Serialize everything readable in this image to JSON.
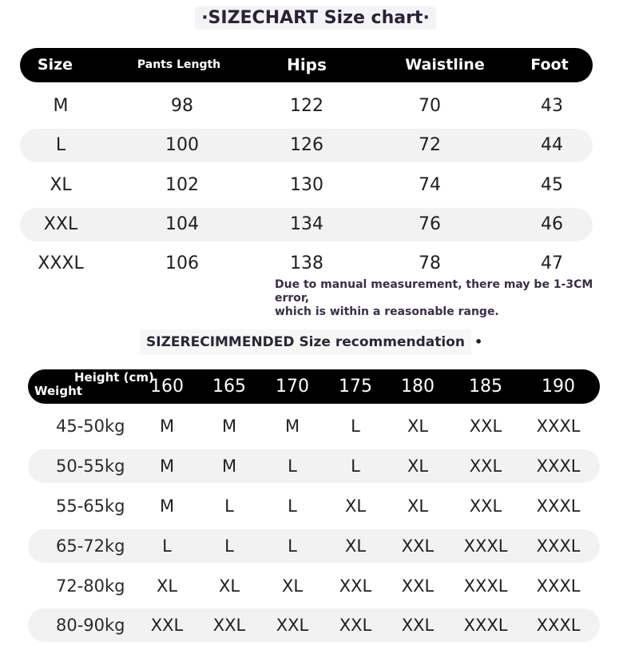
{
  "size_chart": {
    "title": "·SIZECHART Size chart·",
    "headers": [
      "Size",
      "Pants Length",
      "Hips",
      "Waistline",
      "Foot"
    ],
    "rows": [
      [
        "M",
        "98",
        "122",
        "70",
        "43"
      ],
      [
        "L",
        "100",
        "126",
        "72",
        "44"
      ],
      [
        "XL",
        "102",
        "130",
        "74",
        "45"
      ],
      [
        "XXL",
        "104",
        "134",
        "76",
        "46"
      ],
      [
        "XXXL",
        "106",
        "138",
        "78",
        "47"
      ]
    ],
    "note_line1": "Due to manual measurement, there may be 1-3CM error,",
    "note_line2": "which is within a reasonable range."
  },
  "recommendation": {
    "title": "SIZERECIMMENDED Size recommendation",
    "dot": "•",
    "height_label": "Height (cm)",
    "weight_label": "Weight",
    "heights": [
      "160",
      "165",
      "170",
      "175",
      "180",
      "185",
      "190"
    ],
    "rows": [
      {
        "weight": "45-50kg",
        "sizes": [
          "M",
          "M",
          "M",
          "L",
          "XL",
          "XXL",
          "XXXL"
        ]
      },
      {
        "weight": "50-55kg",
        "sizes": [
          "M",
          "M",
          "L",
          "L",
          "XL",
          "XXL",
          "XXXL"
        ]
      },
      {
        "weight": "55-65kg",
        "sizes": [
          "M",
          "L",
          "L",
          "XL",
          "XL",
          "XXL",
          "XXXL"
        ]
      },
      {
        "weight": "65-72kg",
        "sizes": [
          "L",
          "L",
          "L",
          "XL",
          "XXL",
          "XXXL",
          "XXXL"
        ]
      },
      {
        "weight": "72-80kg",
        "sizes": [
          "XL",
          "XL",
          "XL",
          "XXL",
          "XXL",
          "XXXL",
          "XXXL"
        ]
      },
      {
        "weight": "80-90kg",
        "sizes": [
          "XXL",
          "XXL",
          "XXL",
          "XXL",
          "XXL",
          "XXXL",
          "XXXL"
        ]
      }
    ]
  },
  "colors": {
    "header_bg": "#000000",
    "stripe_bg": "#f2f2f2",
    "title_text": "#2a2236"
  }
}
